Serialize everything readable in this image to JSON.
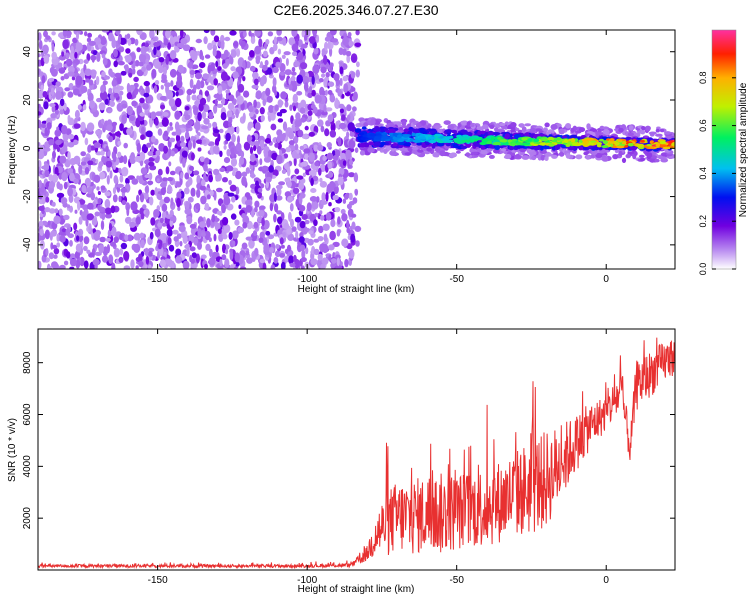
{
  "title": "C2E6.2025.346.07.27.E30",
  "chart_data": [
    {
      "type": "heatmap",
      "xlabel": "Height of straight line (km)",
      "ylabel": "Frequency (Hz)",
      "xlim": [
        -190,
        23
      ],
      "ylim": [
        -50,
        49
      ],
      "xticks": [
        -150,
        -100,
        -50,
        0
      ],
      "yticks": [
        -40,
        -20,
        0,
        20,
        40
      ],
      "colorbar": {
        "label": "Normalized spectral amplitude",
        "range": [
          0,
          1
        ],
        "ticks": [
          "0.0",
          "0.2",
          "0.4",
          "0.6",
          "0.8"
        ]
      },
      "regions": [
        {
          "name": "noise",
          "x_range": [
            -190,
            -83
          ],
          "freq_range": [
            -50,
            49
          ],
          "amplitude": [
            0.05,
            0.25
          ]
        },
        {
          "name": "signal",
          "x_range": [
            -83,
            23
          ],
          "freq_start": 5,
          "freq_mid": 3,
          "freq_end": 1.5,
          "amplitude_start": 0.3,
          "amplitude_end": 1.0
        }
      ]
    },
    {
      "type": "line",
      "xlabel": "Height of straight line (km)",
      "ylabel": "SNR (10 * v/v)",
      "xlim": [
        -190,
        23
      ],
      "ylim": [
        0,
        9300
      ],
      "xticks": [
        -150,
        -100,
        -50,
        0
      ],
      "yticks": [
        2000,
        4000,
        6000,
        8000
      ],
      "series": [
        {
          "name": "SNR",
          "color": "#e83030",
          "x": [
            -190,
            -150,
            -100,
            -85,
            -80,
            -77,
            -73,
            -70,
            -65,
            -60,
            -55,
            -50,
            -45,
            -40,
            -35,
            -30,
            -25,
            -20,
            -15,
            -10,
            -5,
            0,
            5,
            8,
            10,
            15,
            20,
            23
          ],
          "base": [
            150,
            150,
            150,
            180,
            600,
            1300,
            1700,
            1900,
            1900,
            2000,
            2000,
            2100,
            2200,
            2300,
            2500,
            2800,
            3000,
            3300,
            4000,
            4800,
            5500,
            6000,
            6800,
            4600,
            7000,
            7500,
            8000,
            8200
          ],
          "spread": [
            60,
            60,
            60,
            80,
            300,
            900,
            1300,
            1400,
            1500,
            1500,
            1600,
            1500,
            1500,
            1600,
            1600,
            1700,
            1900,
            1900,
            1500,
            1100,
            900,
            700,
            900,
            600,
            1000,
            900,
            800,
            700
          ]
        }
      ]
    }
  ]
}
